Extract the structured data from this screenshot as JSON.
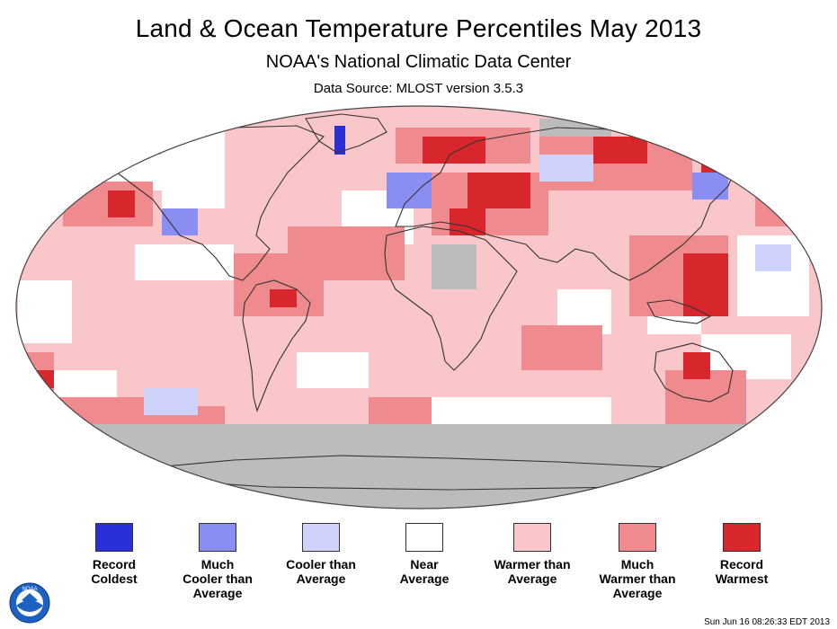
{
  "header": {
    "title": "Land & Ocean Temperature Percentiles May 2013",
    "subtitle": "NOAA's National Climatic Data Center",
    "source": "Data Source: MLOST version 3.5.3"
  },
  "colors": {
    "record_coldest": "#2b2fd6",
    "much_cooler": "#8a8ef0",
    "cooler": "#cfd2fb",
    "near": "#ffffff",
    "warmer": "#f9c6c9",
    "much_warmer": "#ef8a8e",
    "record_warmest": "#d7262c",
    "no_data": "#bcbcbc",
    "land_outline": "#333333"
  },
  "legend": [
    {
      "label": "Record\nColdest",
      "color": "#2b2fd6"
    },
    {
      "label": "Much\nCooler than\nAverage",
      "color": "#8a8ef0"
    },
    {
      "label": "Cooler than\nAverage",
      "color": "#cfd2fb"
    },
    {
      "label": "Near\nAverage",
      "color": "#ffffff"
    },
    {
      "label": "Warmer than\nAverage",
      "color": "#f9c6c9"
    },
    {
      "label": "Much\nWarmer than\nAverage",
      "color": "#ef8a8e"
    },
    {
      "label": "Record\nWarmest",
      "color": "#d7262c"
    }
  ],
  "logo": {
    "icon": "noaa-logo-icon",
    "text": "NOAA"
  },
  "footer": {
    "timestamp": "Sun Jun 16 08:26:33 EDT 2013"
  }
}
